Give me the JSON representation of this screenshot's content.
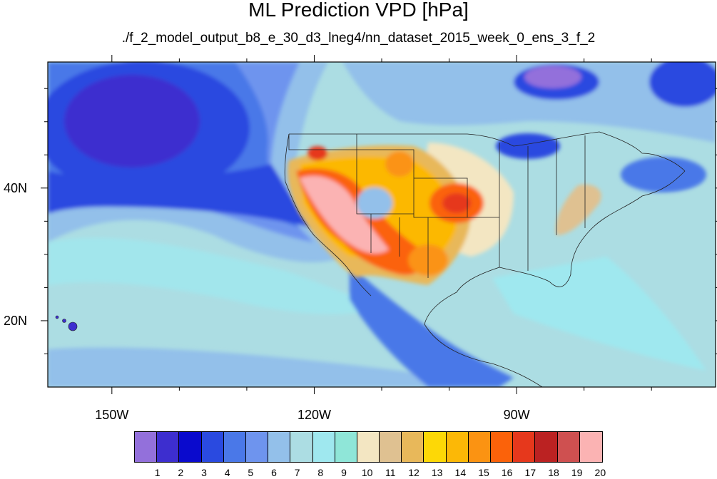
{
  "title": "ML Prediction VPD [hPa]",
  "subtitle": "./f_2_model_output_b8_e_30_d3_lneg4/nn_dataset_2015_week_0_ens_3_f_2",
  "axes": {
    "lon_ticks": [
      {
        "label": "150W",
        "value": -150
      },
      {
        "label": "120W",
        "value": -120
      },
      {
        "label": "90W",
        "value": -90
      }
    ],
    "lat_ticks": [
      {
        "label": "40N",
        "value": 40
      },
      {
        "label": "20N",
        "value": 20
      }
    ],
    "lon_range": [
      -159.5,
      -60.5
    ],
    "lat_range": [
      10,
      59
    ]
  },
  "colorbar": {
    "colors": [
      "#9370db",
      "#3d2ecf",
      "#0a0acd",
      "#2a4ae0",
      "#4a78e8",
      "#6e94ee",
      "#93c0ea",
      "#acdde3",
      "#9fe8ef",
      "#8fe6d8",
      "#f3e6c2",
      "#dfc191",
      "#e8b85a",
      "#fdd806",
      "#fcb806",
      "#fb9312",
      "#fb620a",
      "#e6381c",
      "#bb2222",
      "#cf5050",
      "#fbb3b3"
    ],
    "labels": [
      "1",
      "2",
      "3",
      "4",
      "5",
      "6",
      "7",
      "8",
      "9",
      "10",
      "11",
      "12",
      "13",
      "14",
      "15",
      "16",
      "17",
      "18",
      "19",
      "20"
    ]
  },
  "map": {
    "background_color": "#acdde3"
  }
}
